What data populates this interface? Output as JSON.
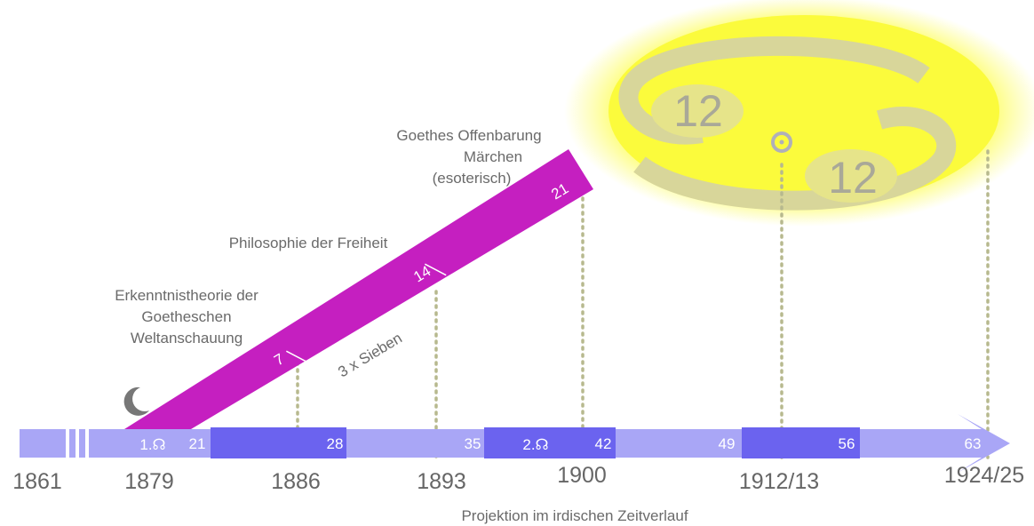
{
  "timeline": {
    "ages": [
      "21",
      "28",
      "35",
      "42",
      "49",
      "56",
      "63"
    ],
    "nodes": [
      "1.☊",
      "2.☊"
    ],
    "years": [
      "1861",
      "1879",
      "1886",
      "1893",
      "1900",
      "1912/13",
      "1924/25"
    ],
    "caption": "Projektion im irdischen Zeitverlauf"
  },
  "arc": {
    "ages": [
      "7",
      "14",
      "21"
    ],
    "note": "3 x Sieben",
    "works": [
      [
        "Erkenntnistheorie der",
        "Goetheschen",
        "Weltanschauung"
      ],
      [
        "Philosophie der Freiheit"
      ],
      [
        "Goethes Offenbarung",
        "Märchen",
        "(esoterisch)"
      ]
    ]
  },
  "sun": {
    "numbers": [
      "12",
      "12"
    ]
  }
}
